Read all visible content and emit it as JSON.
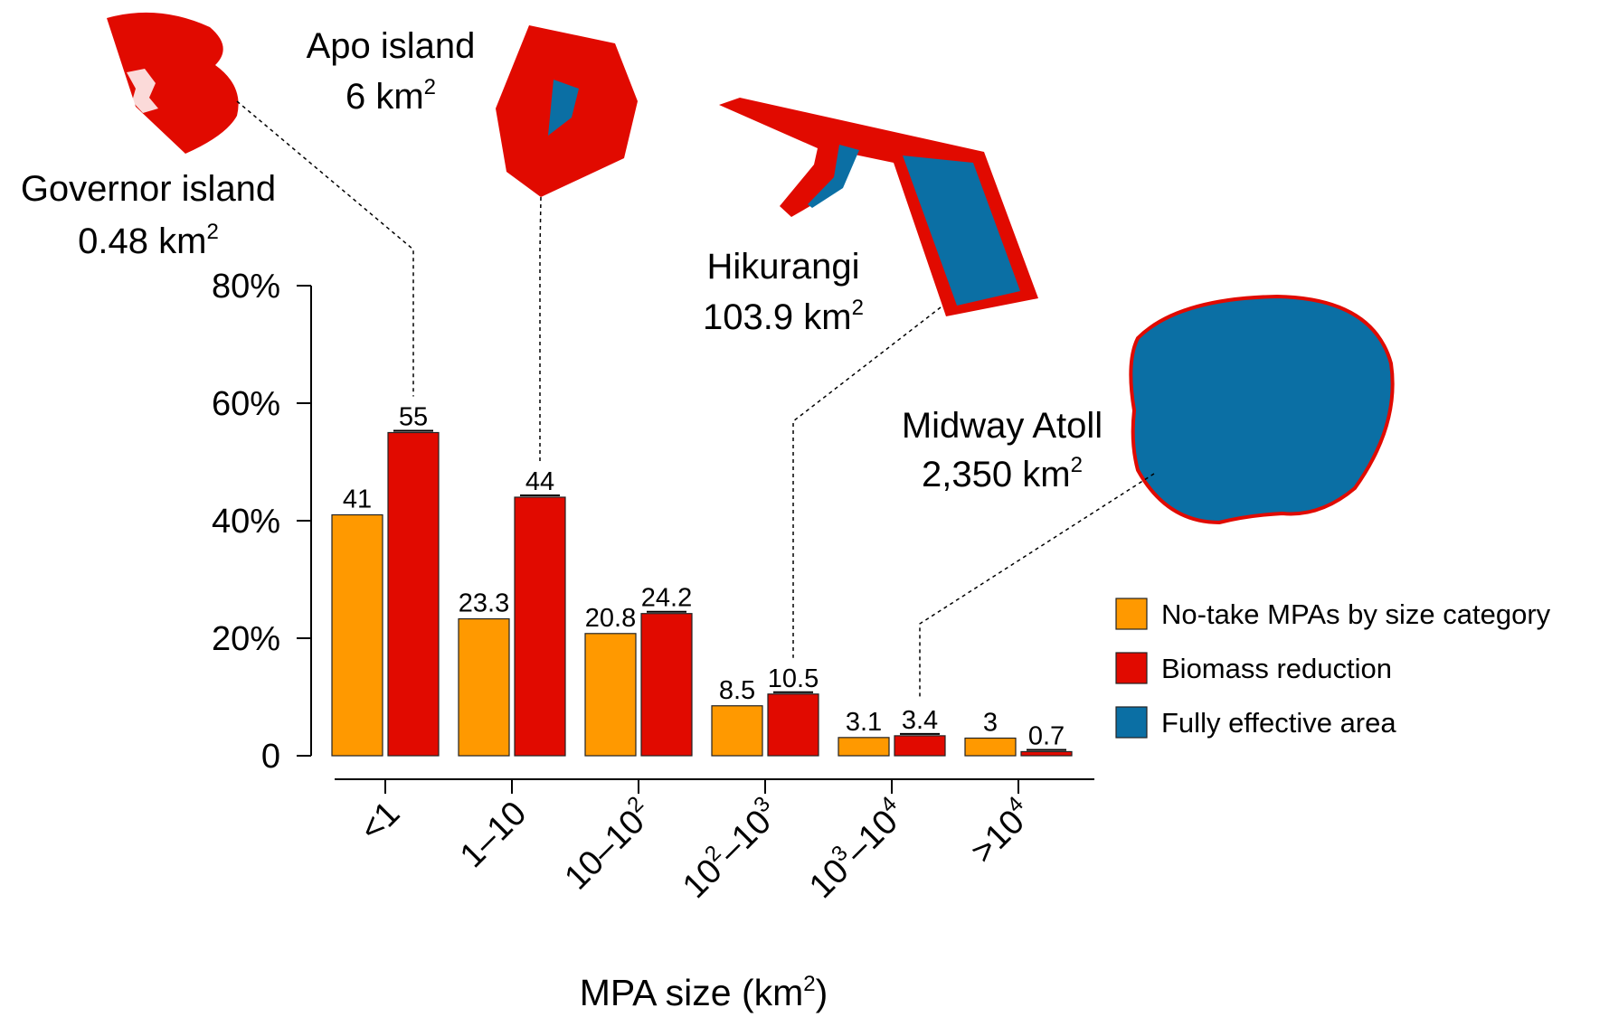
{
  "chart_data": {
    "type": "bar",
    "xlabel": "MPA size (km",
    "xlabel_sup": "2",
    "xlabel_end": ")",
    "ylim": [
      0,
      80
    ],
    "yticks": [
      {
        "value": 0,
        "label": "0"
      },
      {
        "value": 20,
        "label": "20%"
      },
      {
        "value": 40,
        "label": "40%"
      },
      {
        "value": 60,
        "label": "60%"
      },
      {
        "value": 80,
        "label": "80%"
      }
    ],
    "categories": [
      {
        "base": "<1",
        "sup": ""
      },
      {
        "base": "1–10",
        "sup": ""
      },
      {
        "base": "10–10",
        "sup": "2"
      },
      {
        "parts": [
          [
            "10",
            "2"
          ],
          [
            "–10",
            "3"
          ]
        ]
      },
      {
        "parts": [
          [
            "10",
            "3"
          ],
          [
            "–10",
            "4"
          ]
        ]
      },
      {
        "base": ">10",
        "sup": "4"
      }
    ],
    "series": [
      {
        "name": "No-take MPAs by size category",
        "color": "#ff9900",
        "values": [
          41,
          23.3,
          20.8,
          8.5,
          3.1,
          3
        ],
        "labels": [
          "41",
          "23.3",
          "20.8",
          "8.5",
          "3.1",
          "3"
        ]
      },
      {
        "name": "Biomass reduction",
        "color": "#e10a00",
        "values": [
          55,
          44,
          24.2,
          10.5,
          3.4,
          0.7
        ],
        "labels": [
          "55",
          "44",
          "24.2",
          "10.5",
          "3.4",
          "0.7"
        ]
      }
    ],
    "legend": [
      {
        "label": "No-take MPAs by size category",
        "color": "#ff9900"
      },
      {
        "label": "Biomass reduction",
        "color": "#e10a00"
      },
      {
        "label": "Fully effective area",
        "color": "#0b6fa4"
      }
    ],
    "legend_position": "right",
    "callouts": [
      {
        "name": "Governor island",
        "area": "0.48 km",
        "sup": "2",
        "category_index": 0
      },
      {
        "name": "Apo island",
        "area": "6 km",
        "sup": "2",
        "category_index": 1
      },
      {
        "name": "Hikurangi",
        "area": "103.9 km",
        "sup": "2",
        "category_index": 3
      },
      {
        "name": "Midway Atoll",
        "area": "2,350 km",
        "sup": "2",
        "category_index": 4
      }
    ]
  }
}
